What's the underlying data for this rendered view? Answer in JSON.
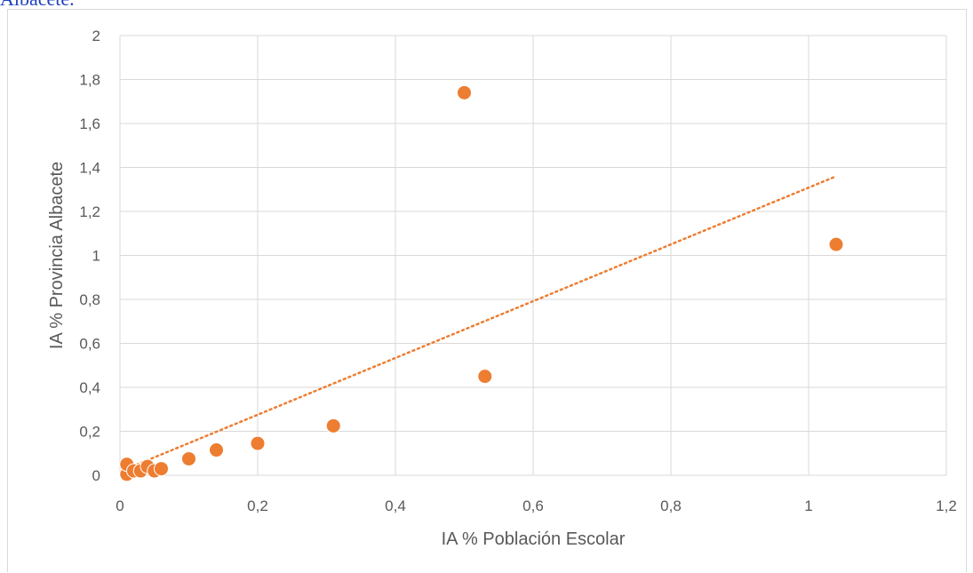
{
  "caption": "Albacete.",
  "chart_data": {
    "type": "scatter",
    "xlabel": "IA % Población Escolar",
    "ylabel": "IA % Provincia Albacete",
    "xlim": [
      0,
      1.2
    ],
    "ylim": [
      0,
      2
    ],
    "xticks": [
      "0",
      "0,2",
      "0,4",
      "0,6",
      "0,8",
      "1",
      "1,2"
    ],
    "yticks": [
      "0",
      "0,2",
      "0,4",
      "0,6",
      "0,8",
      "1",
      "1,2",
      "1,4",
      "1,6",
      "1,8",
      "2"
    ],
    "grid": true,
    "series": [
      {
        "color": "#ed7d31",
        "points": [
          {
            "x": 0.01,
            "y": 0.005
          },
          {
            "x": 0.01,
            "y": 0.05
          },
          {
            "x": 0.02,
            "y": 0.02
          },
          {
            "x": 0.03,
            "y": 0.02
          },
          {
            "x": 0.04,
            "y": 0.04
          },
          {
            "x": 0.05,
            "y": 0.02
          },
          {
            "x": 0.06,
            "y": 0.03
          },
          {
            "x": 0.1,
            "y": 0.075
          },
          {
            "x": 0.14,
            "y": 0.115
          },
          {
            "x": 0.2,
            "y": 0.145
          },
          {
            "x": 0.31,
            "y": 0.225
          },
          {
            "x": 0.5,
            "y": 1.74
          },
          {
            "x": 0.53,
            "y": 0.45
          },
          {
            "x": 1.04,
            "y": 1.05
          }
        ]
      }
    ],
    "trendline": {
      "style": "dotted",
      "color": "#ed7d31",
      "x": [
        0.01,
        1.04
      ],
      "y": [
        0.03,
        1.36
      ]
    }
  }
}
